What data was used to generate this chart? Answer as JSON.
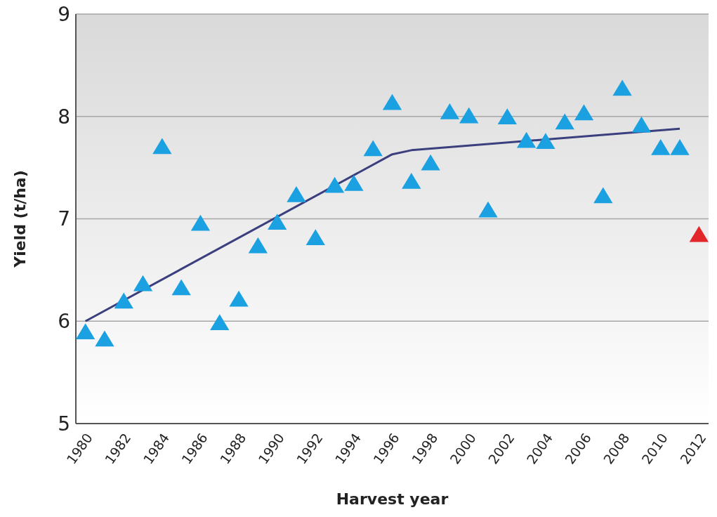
{
  "chart_data": {
    "type": "scatter",
    "xlabel": "Harvest year",
    "ylabel": "Yield (t/ha)",
    "xlim": [
      1979.5,
      2012.5
    ],
    "xticks": [
      1980,
      1982,
      1984,
      1986,
      1988,
      1990,
      1992,
      1994,
      1996,
      1998,
      2000,
      2002,
      2004,
      2006,
      2008,
      2010,
      2012
    ],
    "ylim": [
      5,
      9
    ],
    "yticks": [
      5,
      6,
      7,
      8,
      9
    ],
    "grid": "y",
    "marker": "triangle",
    "series": [
      {
        "color": "#1ba1e2",
        "x": [
          1980,
          1981,
          1982,
          1983,
          1984,
          1985,
          1986,
          1987,
          1988,
          1989,
          1990,
          1991,
          1992,
          1993,
          1994,
          1995,
          1996,
          1997,
          1998,
          1999,
          2000,
          2001,
          2002,
          2003,
          2004,
          2005,
          2006,
          2007,
          2008,
          2009,
          2010,
          2011
        ],
        "values": [
          5.89,
          5.82,
          6.19,
          6.36,
          7.7,
          6.32,
          6.95,
          5.98,
          6.21,
          6.73,
          6.96,
          7.23,
          6.81,
          7.32,
          7.34,
          7.68,
          8.13,
          7.36,
          7.54,
          8.04,
          8.0,
          7.08,
          7.99,
          7.76,
          7.75,
          7.94,
          8.03,
          7.22,
          8.27,
          7.91,
          7.69,
          7.69
        ]
      },
      {
        "color": "#e3262a",
        "x": [
          2012
        ],
        "values": [
          6.84
        ]
      },
      {
        "type": "line",
        "color": "#3b3f7e",
        "marker": "none",
        "x": [
          1980,
          1996,
          1997,
          2011
        ],
        "values": [
          6.0,
          7.63,
          7.67,
          7.88
        ]
      }
    ]
  }
}
